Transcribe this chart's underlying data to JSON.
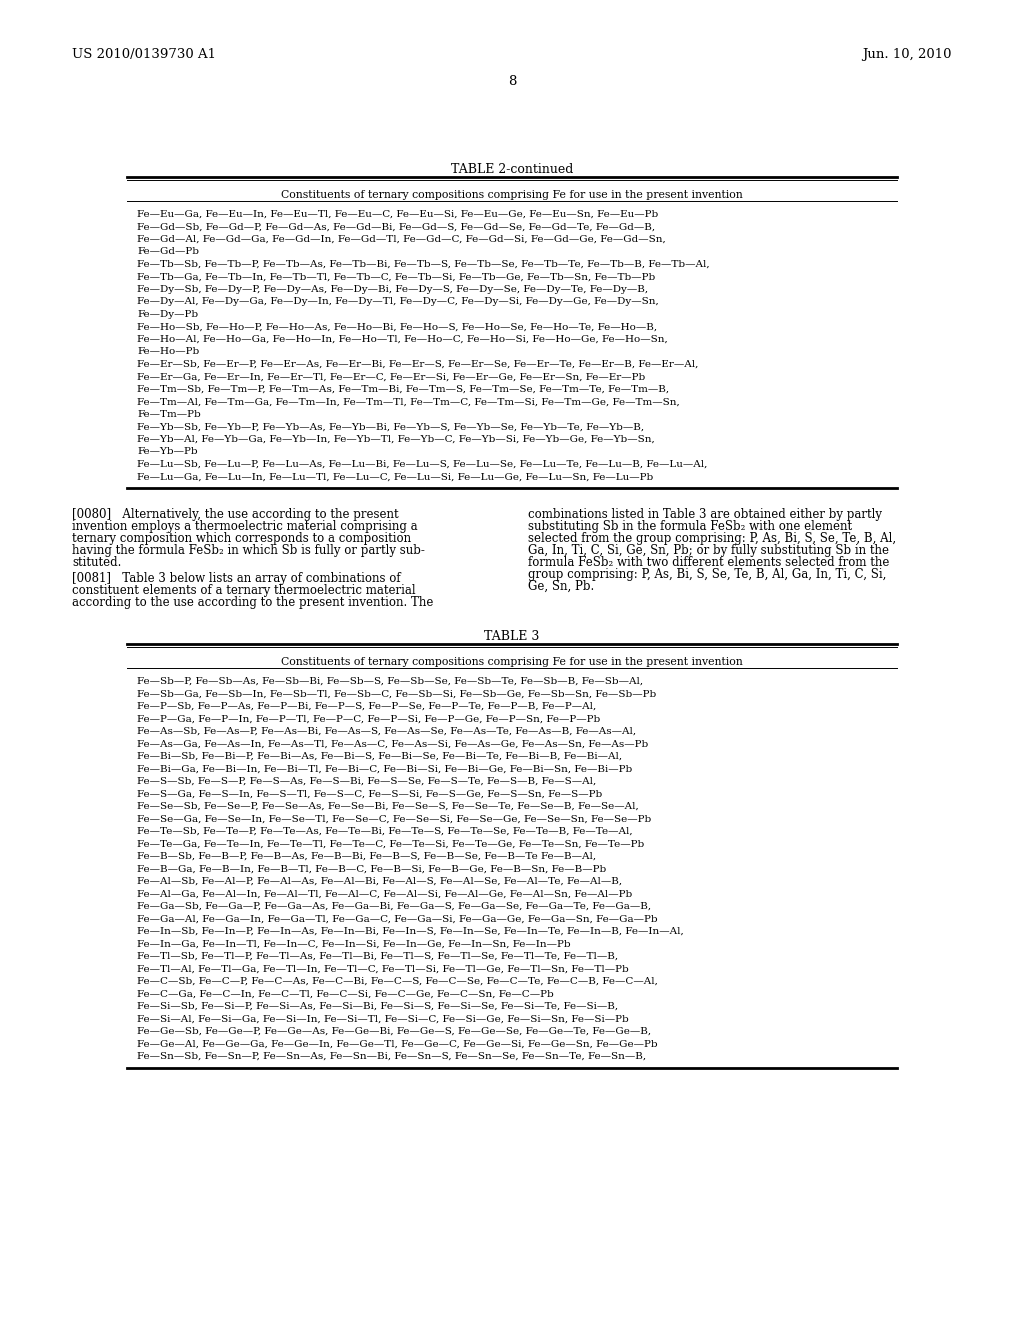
{
  "header_left": "US 2010/0139730 A1",
  "header_right": "Jun. 10, 2010",
  "page_number": "8",
  "table2_title": "TABLE 2-continued",
  "table2_subtitle": "Constituents of ternary compositions comprising Fe for use in the present invention",
  "table2_content": [
    "Fe—Eu—Ga, Fe—Eu—In, Fe—Eu—Tl, Fe—Eu—C, Fe—Eu—Si, Fe—Eu—Ge, Fe—Eu—Sn, Fe—Eu—Pb",
    "Fe—Gd—Sb, Fe—Gd—P, Fe—Gd—As, Fe—Gd—Bi, Fe—Gd—S, Fe—Gd—Se, Fe—Gd—Te, Fe—Gd—B,",
    "Fe—Gd—Al, Fe—Gd—Ga, Fe—Gd—In, Fe—Gd—Tl, Fe—Gd—C, Fe—Gd—Si, Fe—Gd—Ge, Fe—Gd—Sn,",
    "Fe—Gd—Pb",
    "Fe—Tb—Sb, Fe—Tb—P, Fe—Tb—As, Fe—Tb—Bi, Fe—Tb—S, Fe—Tb—Se, Fe—Tb—Te, Fe—Tb—B, Fe—Tb—Al,",
    "Fe—Tb—Ga, Fe—Tb—In, Fe—Tb—Tl, Fe—Tb—C, Fe—Tb—Si, Fe—Tb—Ge, Fe—Tb—Sn, Fe—Tb—Pb",
    "Fe—Dy—Sb, Fe—Dy—P, Fe—Dy—As, Fe—Dy—Bi, Fe—Dy—S, Fe—Dy—Se, Fe—Dy—Te, Fe—Dy—B,",
    "Fe—Dy—Al, Fe—Dy—Ga, Fe—Dy—In, Fe—Dy—Tl, Fe—Dy—C, Fe—Dy—Si, Fe—Dy—Ge, Fe—Dy—Sn,",
    "Fe—Dy—Pb",
    "Fe—Ho—Sb, Fe—Ho—P, Fe—Ho—As, Fe—Ho—Bi, Fe—Ho—S, Fe—Ho—Se, Fe—Ho—Te, Fe—Ho—B,",
    "Fe—Ho—Al, Fe—Ho—Ga, Fe—Ho—In, Fe—Ho—Tl, Fe—Ho—C, Fe—Ho—Si, Fe—Ho—Ge, Fe—Ho—Sn,",
    "Fe—Ho—Pb",
    "Fe—Er—Sb, Fe—Er—P, Fe—Er—As, Fe—Er—Bi, Fe—Er—S, Fe—Er—Se, Fe—Er—Te, Fe—Er—B, Fe—Er—Al,",
    "Fe—Er—Ga, Fe—Er—In, Fe—Er—Tl, Fe—Er—C, Fe—Er—Si, Fe—Er—Ge, Fe—Er—Sn, Fe—Er—Pb",
    "Fe—Tm—Sb, Fe—Tm—P, Fe—Tm—As, Fe—Tm—Bi, Fe—Tm—S, Fe—Tm—Se, Fe—Tm—Te, Fe—Tm—B,",
    "Fe—Tm—Al, Fe—Tm—Ga, Fe—Tm—In, Fe—Tm—Tl, Fe—Tm—C, Fe—Tm—Si, Fe—Tm—Ge, Fe—Tm—Sn,",
    "Fe—Tm—Pb",
    "Fe—Yb—Sb, Fe—Yb—P, Fe—Yb—As, Fe—Yb—Bi, Fe—Yb—S, Fe—Yb—Se, Fe—Yb—Te, Fe—Yb—B,",
    "Fe—Yb—Al, Fe—Yb—Ga, Fe—Yb—In, Fe—Yb—Tl, Fe—Yb—C, Fe—Yb—Si, Fe—Yb—Ge, Fe—Yb—Sn,",
    "Fe—Yb—Pb",
    "Fe—Lu—Sb, Fe—Lu—P, Fe—Lu—As, Fe—Lu—Bi, Fe—Lu—S, Fe—Lu—Se, Fe—Lu—Te, Fe—Lu—B, Fe—Lu—Al,",
    "Fe—Lu—Ga, Fe—Lu—In, Fe—Lu—Tl, Fe—Lu—C, Fe—Lu—Si, Fe—Lu—Ge, Fe—Lu—Sn, Fe—Lu—Pb"
  ],
  "para0080_left": "[0080]   Alternatively, the use according to the present\ninvention employs a thermoelectric material comprising a\nternary composition which corresponds to a composition\nhaving the formula FeSb₂ in which Sb is fully or partly sub-\nstituted.",
  "para0081_left": "[0081]   Table 3 below lists an array of combinations of\nconstituent elements of a ternary thermoelectric material\naccording to the use according to the present invention. The",
  "para0080_right": "combinations listed in Table 3 are obtained either by partly\nsubstituting Sb in the formula FeSb₂ with one element\nselected from the group comprising: P, As, Bi, S, Se, Te, B, Al,\nGa, In, Ti, C, Si, Ge, Sn, Pb; or by fully substituting Sb in the\nformula FeSb₂ with two different elements selected from the\ngroup comprising: P, As, Bi, S, Se, Te, B, Al, Ga, In, Ti, C, Si,\nGe, Sn, Pb.",
  "table3_title": "TABLE 3",
  "table3_subtitle": "Constituents of ternary compositions comprising Fe for use in the present invention",
  "table3_content": [
    "Fe—Sb—P, Fe—Sb—As, Fe—Sb—Bi, Fe—Sb—S, Fe—Sb—Se, Fe—Sb—Te, Fe—Sb—B, Fe—Sb—Al,",
    "Fe—Sb—Ga, Fe—Sb—In, Fe—Sb—Tl, Fe—Sb—C, Fe—Sb—Si, Fe—Sb—Ge, Fe—Sb—Sn, Fe—Sb—Pb",
    "Fe—P—Sb, Fe—P—As, Fe—P—Bi, Fe—P—S, Fe—P—Se, Fe—P—Te, Fe—P—B, Fe—P—Al,",
    "Fe—P—Ga, Fe—P—In, Fe—P—Tl, Fe—P—C, Fe—P—Si, Fe—P—Ge, Fe—P—Sn, Fe—P—Pb",
    "Fe—As—Sb, Fe—As—P, Fe—As—Bi, Fe—As—S, Fe—As—Se, Fe—As—Te, Fe—As—B, Fe—As—Al,",
    "Fe—As—Ga, Fe—As—In, Fe—As—Tl, Fe—As—C, Fe—As—Si, Fe—As—Ge, Fe—As—Sn, Fe—As—Pb",
    "Fe—Bi—Sb, Fe—Bi—P, Fe—Bi—As, Fe—Bi—S, Fe—Bi—Se, Fe—Bi—Te, Fe—Bi—B, Fe—Bi—Al,",
    "Fe—Bi—Ga, Fe—Bi—In, Fe—Bi—Tl, Fe—Bi—C, Fe—Bi—Si, Fe—Bi—Ge, Fe—Bi—Sn, Fe—Bi—Pb",
    "Fe—S—Sb, Fe—S—P, Fe—S—As, Fe—S—Bi, Fe—S—Se, Fe—S—Te, Fe—S—B, Fe—S—Al,",
    "Fe—S—Ga, Fe—S—In, Fe—S—Tl, Fe—S—C, Fe—S—Si, Fe—S—Ge, Fe—S—Sn, Fe—S—Pb",
    "Fe—Se—Sb, Fe—Se—P, Fe—Se—As, Fe—Se—Bi, Fe—Se—S, Fe—Se—Te, Fe—Se—B, Fe—Se—Al,",
    "Fe—Se—Ga, Fe—Se—In, Fe—Se—Tl, Fe—Se—C, Fe—Se—Si, Fe—Se—Ge, Fe—Se—Sn, Fe—Se—Pb",
    "Fe—Te—Sb, Fe—Te—P, Fe—Te—As, Fe—Te—Bi, Fe—Te—S, Fe—Te—Se, Fe—Te—B, Fe—Te—Al,",
    "Fe—Te—Ga, Fe—Te—In, Fe—Te—Tl, Fe—Te—C, Fe—Te—Si, Fe—Te—Ge, Fe—Te—Sn, Fe—Te—Pb",
    "Fe—B—Sb, Fe—B—P, Fe—B—As, Fe—B—Bi, Fe—B—S, Fe—B—Se, Fe—B—Te Fe—B—Al,",
    "Fe—B—Ga, Fe—B—In, Fe—B—Tl, Fe—B—C, Fe—B—Si, Fe—B—Ge, Fe—B—Sn, Fe—B—Pb",
    "Fe—Al—Sb, Fe—Al—P, Fe—Al—As, Fe—Al—Bi, Fe—Al—S, Fe—Al—Se, Fe—Al—Te, Fe—Al—B,",
    "Fe—Al—Ga, Fe—Al—In, Fe—Al—Tl, Fe—Al—C, Fe—Al—Si, Fe—Al—Ge, Fe—Al—Sn, Fe—Al—Pb",
    "Fe—Ga—Sb, Fe—Ga—P, Fe—Ga—As, Fe—Ga—Bi, Fe—Ga—S, Fe—Ga—Se, Fe—Ga—Te, Fe—Ga—B,",
    "Fe—Ga—Al, Fe—Ga—In, Fe—Ga—Tl, Fe—Ga—C, Fe—Ga—Si, Fe—Ga—Ge, Fe—Ga—Sn, Fe—Ga—Pb",
    "Fe—In—Sb, Fe—In—P, Fe—In—As, Fe—In—Bi, Fe—In—S, Fe—In—Se, Fe—In—Te, Fe—In—B, Fe—In—Al,",
    "Fe—In—Ga, Fe—In—Tl, Fe—In—C, Fe—In—Si, Fe—In—Ge, Fe—In—Sn, Fe—In—Pb",
    "Fe—Tl—Sb, Fe—Tl—P, Fe—Tl—As, Fe—Tl—Bi, Fe—Tl—S, Fe—Tl—Se, Fe—Tl—Te, Fe—Tl—B,",
    "Fe—Tl—Al, Fe—Tl—Ga, Fe—Tl—In, Fe—Tl—C, Fe—Tl—Si, Fe—Tl—Ge, Fe—Tl—Sn, Fe—Tl—Pb",
    "Fe—C—Sb, Fe—C—P, Fe—C—As, Fe—C—Bi, Fe—C—S, Fe—C—Se, Fe—C—Te, Fe—C—B, Fe—C—Al,",
    "Fe—C—Ga, Fe—C—In, Fe—C—Tl, Fe—C—Si, Fe—C—Ge, Fe—C—Sn, Fe—C—Pb",
    "Fe—Si—Sb, Fe—Si—P, Fe—Si—As, Fe—Si—Bi, Fe—Si—S, Fe—Si—Se, Fe—Si—Te, Fe—Si—B,",
    "Fe—Si—Al, Fe—Si—Ga, Fe—Si—In, Fe—Si—Tl, Fe—Si—C, Fe—Si—Ge, Fe—Si—Sn, Fe—Si—Pb",
    "Fe—Ge—Sb, Fe—Ge—P, Fe—Ge—As, Fe—Ge—Bi, Fe—Ge—S, Fe—Ge—Se, Fe—Ge—Te, Fe—Ge—B,",
    "Fe—Ge—Al, Fe—Ge—Ga, Fe—Ge—In, Fe—Ge—Tl, Fe—Ge—C, Fe—Ge—Si, Fe—Ge—Sn, Fe—Ge—Pb",
    "Fe—Sn—Sb, Fe—Sn—P, Fe—Sn—As, Fe—Sn—Bi, Fe—Sn—S, Fe—Sn—Se, Fe—Sn—Te, Fe—Sn—B,"
  ],
  "bg_color": "#ffffff",
  "text_color": "#000000"
}
